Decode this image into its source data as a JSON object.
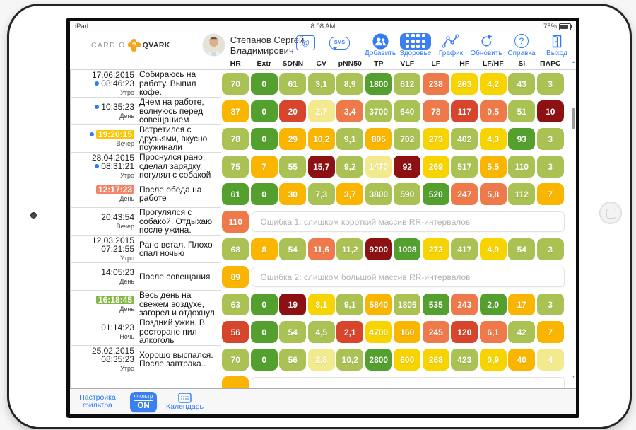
{
  "status_bar": {
    "left": "iPad",
    "time": "8:08 AM",
    "battery": "75%"
  },
  "header": {
    "logo": {
      "part1": "CARDIO",
      "part2": "QVARK"
    },
    "user_name": "Степанов Сергей Владимирович",
    "icons": {
      "mail_glyph": "@",
      "sms_glyph": "SMS",
      "help_glyph": "?"
    },
    "toolbar": [
      {
        "label": "Добавить",
        "icon": "add-contact-icon",
        "active": false
      },
      {
        "label": "Здоровье",
        "icon": "health-grid-icon",
        "active": true
      },
      {
        "label": "График",
        "icon": "line-chart-icon",
        "active": false
      },
      {
        "label": "Обновить",
        "icon": "refresh-icon",
        "active": false
      },
      {
        "label": "Справка",
        "icon": "help-icon",
        "active": false
      },
      {
        "label": "Выход",
        "icon": "exit-icon",
        "active": false
      }
    ]
  },
  "table": {
    "columns": [
      "HR",
      "Extr",
      "SDNN",
      "CV",
      "pNN50",
      "TP",
      "VLF",
      "LF",
      "HF",
      "LF/HF",
      "SI",
      "ПАРС"
    ],
    "rows": [
      {
        "date": "17.06.2015",
        "dot": true,
        "time": "08:46:23",
        "hl": null,
        "period": "Утро",
        "note": "Собираюсь на работу. Выпил кофе.",
        "cells": [
          [
            "70",
            "o"
          ],
          [
            "0",
            "g"
          ],
          [
            "61",
            "o"
          ],
          [
            "3,1",
            "o"
          ],
          [
            "8,9",
            "o"
          ],
          [
            "1800",
            "g"
          ],
          [
            "612",
            "o"
          ],
          [
            "238",
            "s"
          ],
          [
            "263",
            "y"
          ],
          [
            "4,2",
            "y"
          ],
          [
            "43",
            "o"
          ],
          [
            "3",
            "o"
          ]
        ],
        "error": null
      },
      {
        "date": null,
        "dot": true,
        "time": "10:35:23",
        "hl": null,
        "period": "День",
        "note": "Днем на работе, волнуюсь перед совещанием",
        "cells": [
          [
            "87",
            "a"
          ],
          [
            "0",
            "g"
          ],
          [
            "20",
            "r"
          ],
          [
            "2,7",
            "p"
          ],
          [
            "3,4",
            "s"
          ],
          [
            "3700",
            "o"
          ],
          [
            "640",
            "o"
          ],
          [
            "78",
            "s"
          ],
          [
            "117",
            "r"
          ],
          [
            "0,5",
            "s"
          ],
          [
            "51",
            "o"
          ],
          [
            "10",
            "d"
          ]
        ],
        "error": null
      },
      {
        "date": null,
        "dot": true,
        "time": "19:20:15",
        "hl": "yellow",
        "period": "Вечер",
        "note": "Встретился с друзьями, вкусно поужинали",
        "cells": [
          [
            "78",
            "o"
          ],
          [
            "0",
            "g"
          ],
          [
            "29",
            "a"
          ],
          [
            "10,2",
            "a"
          ],
          [
            "9,1",
            "o"
          ],
          [
            "805",
            "a"
          ],
          [
            "702",
            "o"
          ],
          [
            "273",
            "y"
          ],
          [
            "402",
            "o"
          ],
          [
            "4,3",
            "y"
          ],
          [
            "93",
            "g"
          ],
          [
            "3",
            "o"
          ]
        ],
        "error": null
      },
      {
        "date": "28.04.2015",
        "dot": true,
        "time": "08:31:21",
        "hl": null,
        "period": "Утро",
        "note": "Проснулся рано, сделал зарядку, погулял с собакой",
        "cells": [
          [
            "75",
            "o"
          ],
          [
            "7",
            "a"
          ],
          [
            "55",
            "o"
          ],
          [
            "15,7",
            "d"
          ],
          [
            "9,2",
            "o"
          ],
          [
            "1470",
            "p"
          ],
          [
            "92",
            "d"
          ],
          [
            "269",
            "y"
          ],
          [
            "517",
            "o"
          ],
          [
            "5,5",
            "a"
          ],
          [
            "110",
            "o"
          ],
          [
            "3",
            "o"
          ]
        ],
        "error": null
      },
      {
        "date": null,
        "dot": false,
        "time": "12:17:23",
        "hl": "salmon",
        "period": "День",
        "note": "После обеда на работе",
        "cells": [
          [
            "61",
            "g"
          ],
          [
            "0",
            "g"
          ],
          [
            "30",
            "a"
          ],
          [
            "7,3",
            "o"
          ],
          [
            "3,7",
            "a"
          ],
          [
            "3800",
            "o"
          ],
          [
            "590",
            "o"
          ],
          [
            "520",
            "g"
          ],
          [
            "247",
            "s"
          ],
          [
            "5,8",
            "s"
          ],
          [
            "112",
            "o"
          ],
          [
            "7",
            "a"
          ]
        ],
        "error": null
      },
      {
        "date": null,
        "dot": false,
        "time": "20:43:54",
        "hl": null,
        "period": "Вечер",
        "note": "Прогулялся с собакой. Отдыхаю после ужина.",
        "cells": [
          [
            "110",
            "s"
          ]
        ],
        "error": "Ошибка 1: слишком короткий массив RR-интервалов"
      },
      {
        "date": "12.03.2015",
        "dot": false,
        "time": "07:21:55",
        "hl": null,
        "period": "Утро",
        "note": "Рано встал. Плохо спал ночью",
        "cells": [
          [
            "68",
            "o"
          ],
          [
            "8",
            "a"
          ],
          [
            "54",
            "o"
          ],
          [
            "11,6",
            "s"
          ],
          [
            "11,2",
            "o"
          ],
          [
            "9200",
            "d"
          ],
          [
            "1008",
            "g"
          ],
          [
            "273",
            "y"
          ],
          [
            "417",
            "o"
          ],
          [
            "4,9",
            "y"
          ],
          [
            "54",
            "o"
          ],
          [
            "3",
            "o"
          ]
        ],
        "error": null
      },
      {
        "date": null,
        "dot": false,
        "time": "14:05:23",
        "hl": null,
        "period": "День",
        "note": "После совещания",
        "cells": [
          [
            "89",
            "a"
          ]
        ],
        "error": "Ошибка 2: слишком большой массив RR-интервалов"
      },
      {
        "date": null,
        "dot": false,
        "time": "16:18:45",
        "hl": "green",
        "period": "День",
        "note": "Весь день на свежем воздухе, загорел и отдохнул",
        "cells": [
          [
            "63",
            "o"
          ],
          [
            "0",
            "g"
          ],
          [
            "19",
            "d"
          ],
          [
            "8,1",
            "y"
          ],
          [
            "9,1",
            "o"
          ],
          [
            "5840",
            "a"
          ],
          [
            "1805",
            "o"
          ],
          [
            "535",
            "g"
          ],
          [
            "243",
            "s"
          ],
          [
            "2,0",
            "g"
          ],
          [
            "17",
            "a"
          ],
          [
            "3",
            "o"
          ]
        ],
        "error": null
      },
      {
        "date": null,
        "dot": false,
        "time": "01:14:23",
        "hl": null,
        "period": "Ночь",
        "note": "Поздний ужин. В ресторане пил алкоголь",
        "cells": [
          [
            "56",
            "r"
          ],
          [
            "0",
            "g"
          ],
          [
            "54",
            "o"
          ],
          [
            "4,5",
            "o"
          ],
          [
            "2,1",
            "r"
          ],
          [
            "4700",
            "y"
          ],
          [
            "160",
            "a"
          ],
          [
            "245",
            "s"
          ],
          [
            "120",
            "r"
          ],
          [
            "6,1",
            "s"
          ],
          [
            "42",
            "o"
          ],
          [
            "7",
            "a"
          ]
        ],
        "error": null
      },
      {
        "date": "25.02.2015",
        "dot": false,
        "time": "08:35:23",
        "hl": null,
        "period": "Утро",
        "note": "Хорошо выспался. После завтрака..",
        "cells": [
          [
            "70",
            "o"
          ],
          [
            "0",
            "g"
          ],
          [
            "56",
            "o"
          ],
          [
            "2,8",
            "p"
          ],
          [
            "10,2",
            "o"
          ],
          [
            "2800",
            "g"
          ],
          [
            "600",
            "y"
          ],
          [
            "268",
            "y"
          ],
          [
            "423",
            "o"
          ],
          [
            "0,9",
            "y"
          ],
          [
            "40",
            "a"
          ],
          [
            "4",
            "p"
          ]
        ],
        "error": null
      },
      {
        "date": null,
        "dot": false,
        "time": "",
        "hl": null,
        "period": "",
        "note": "",
        "cells": [
          [
            "",
            "a"
          ]
        ],
        "error": ""
      }
    ]
  },
  "footer": {
    "settings_label": "Настройка фильтра",
    "filter_label": "Фильтр",
    "filter_state": "ON",
    "calendar_label": "Календарь"
  },
  "colors": {
    "accent": "#2f7cf6",
    "cells": {
      "g": "#53a02f",
      "o": "#a9c253",
      "y": "#f7d400",
      "a": "#fab500",
      "p": "#f3ea8e",
      "s": "#ee7a4b",
      "r": "#d7452d",
      "d": "#8d1012"
    },
    "highlights": {
      "yellow": "#fdc400",
      "salmon": "#f28468",
      "green": "#82b842"
    }
  }
}
